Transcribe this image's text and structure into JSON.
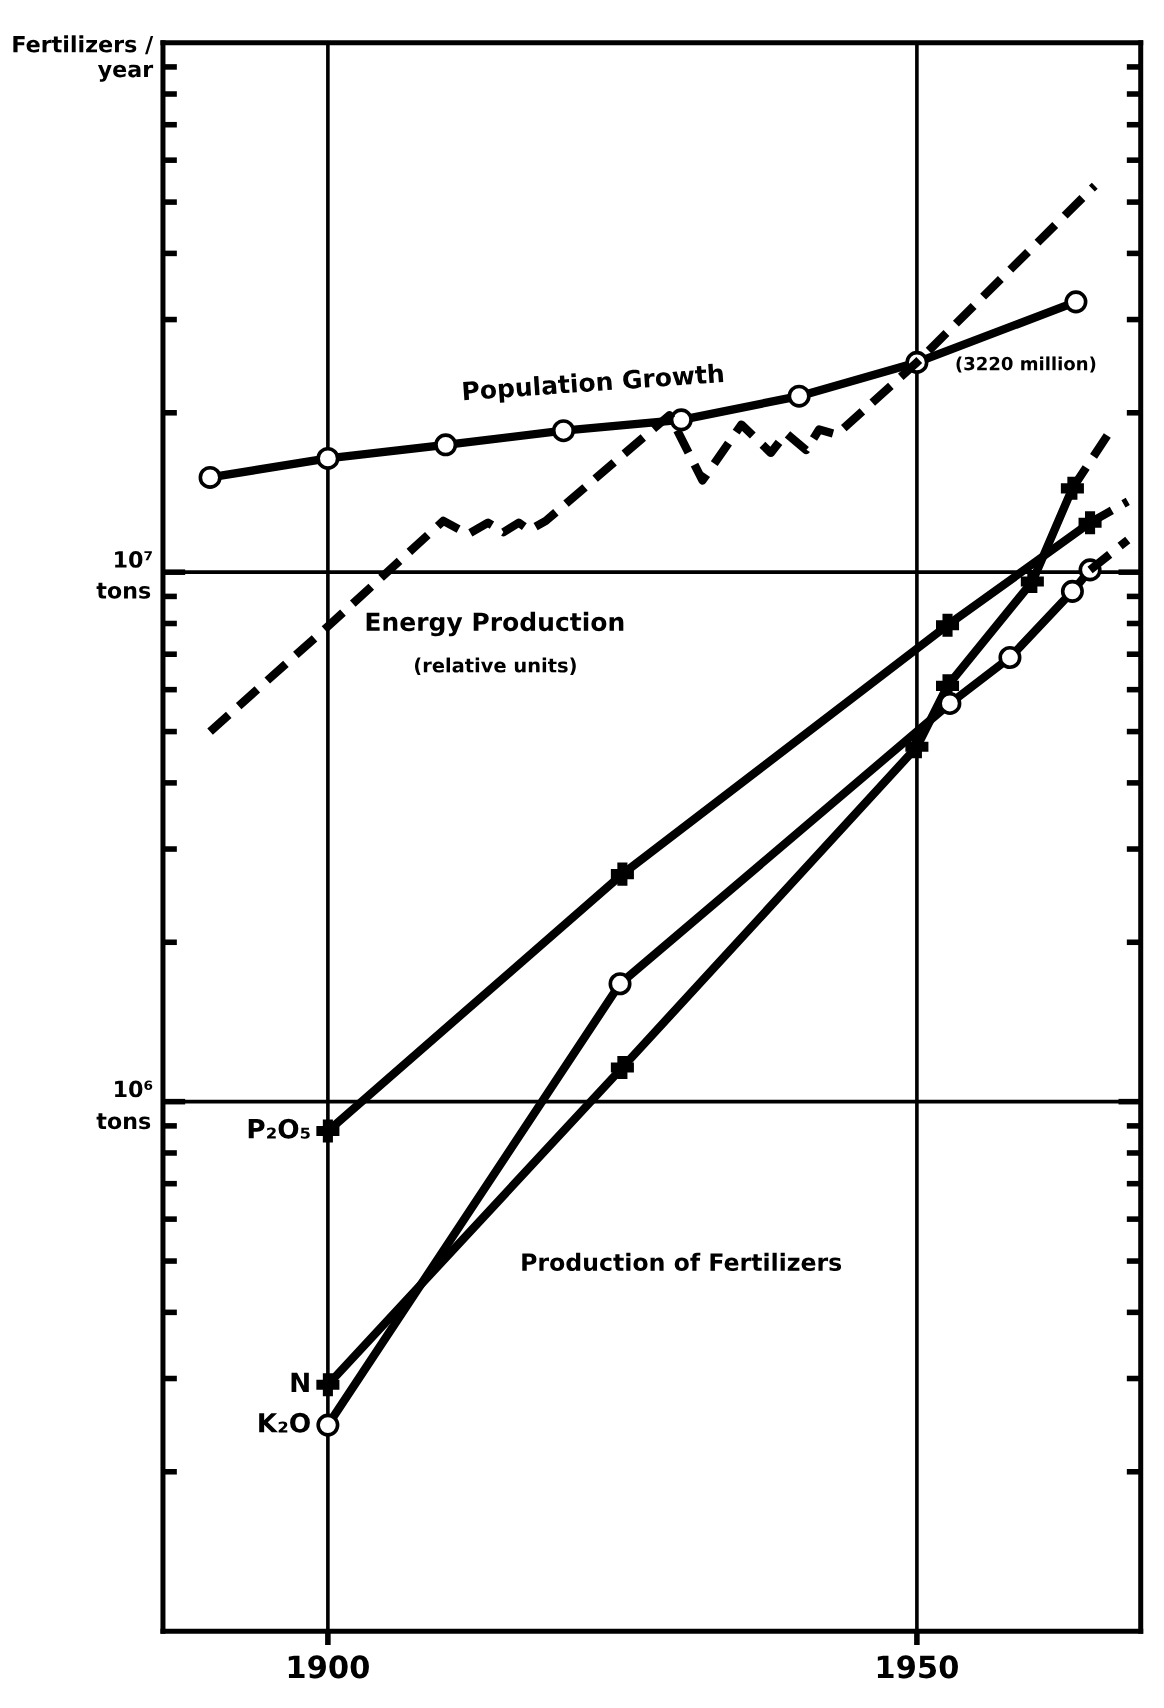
{
  "chart_data": {
    "type": "line",
    "ylabel": "Fertilizers /\nyear",
    "log": "y",
    "grid": true,
    "xlim": [
      1886,
      1969
    ],
    "xticks": [
      1900,
      1950
    ],
    "ylim": [
      100000,
      100000000
    ],
    "yticks": [
      {
        "value": 1000000,
        "label": "10⁶"
      },
      {
        "value": 10000000,
        "label": "10⁷"
      }
    ],
    "series": [
      {
        "color": "#000000",
        "marker": "circle",
        "line_style": "solid",
        "x": [
          1890,
          1900,
          1910,
          1920,
          1930,
          1940,
          1950,
          1963.5
        ],
        "values": [
          15100000,
          16400000,
          17400000,
          18500000,
          19400000,
          21500000,
          24900000,
          32400000
        ]
      },
      {
        "color": "#000000",
        "marker": "none",
        "line_style": "dashed",
        "x": [
          1890,
          1900,
          1909.8,
          1911.9,
          1913.6,
          1914.9,
          1916.2,
          1917.1,
          1918.5,
          1929,
          1931.8,
          1935.1,
          1937.6,
          1938.9,
          1940.6,
          1941.7,
          1943.2,
          1950,
          1965.1
        ],
        "values": [
          5000000,
          7900000,
          12500000,
          11800000,
          12400000,
          11900000,
          12400000,
          12000000,
          12500000,
          19800000,
          14900000,
          19000000,
          16800000,
          18300000,
          17000000,
          18600000,
          18200000,
          24900000,
          53700000
        ]
      },
      {
        "name": "P₂O₅",
        "color": "#000000",
        "marker": "cross",
        "line_style": "solid",
        "x": [
          1900,
          1925,
          1952.6,
          1964.7
        ],
        "values": [
          880000,
          2690000,
          7940000,
          12400000
        ]
      },
      {
        "color": "#000000",
        "marker": "none",
        "line_style": "dashed",
        "x": [
          1964.7,
          1967.9
        ],
        "values": [
          12400000,
          13600000
        ]
      },
      {
        "name": "N",
        "color": "#000000",
        "marker": "cross",
        "line_style": "solid",
        "x": [
          1900,
          1925,
          1950,
          1952.6,
          1959.8,
          1963.2
        ],
        "values": [
          292000,
          1160000,
          4680000,
          6100000,
          9600000,
          14400000
        ]
      },
      {
        "color": "#000000",
        "marker": "none",
        "line_style": "dashed",
        "x": [
          1963.2,
          1966.5
        ],
        "values": [
          14400000,
          18600000
        ]
      },
      {
        "name": "K₂O",
        "color": "#000000",
        "marker": "circle",
        "line_style": "solid",
        "x": [
          1900,
          1924.8,
          1952.8,
          1957.9,
          1963.2,
          1964.7
        ],
        "values": [
          245000,
          1670000,
          5650000,
          6900000,
          9200000,
          10100000
        ]
      },
      {
        "color": "#000000",
        "marker": "none",
        "line_style": "dashed",
        "x": [
          1964.7,
          1967.9
        ],
        "values": [
          10100000,
          11500000
        ]
      }
    ],
    "annotations": [
      "tons",
      "tons",
      "Population Growth",
      "(3220 million)",
      "Energy Production",
      "(relative units)",
      "Production of Fertilizers"
    ]
  }
}
